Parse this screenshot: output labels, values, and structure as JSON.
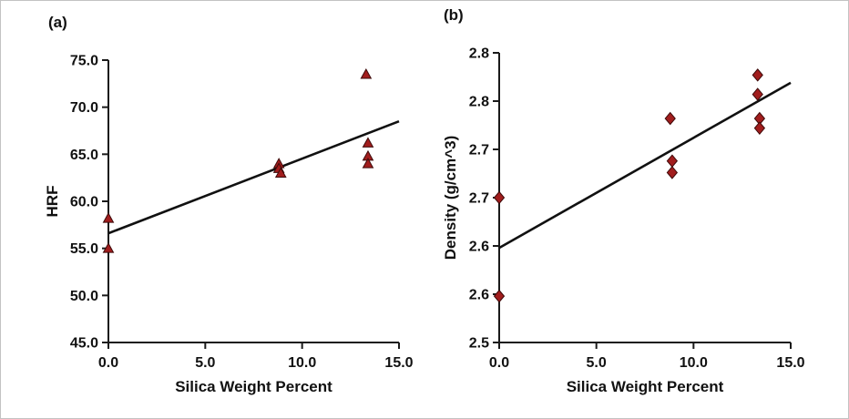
{
  "figure": {
    "background": "#ffffff",
    "text_color": "#111111",
    "axis_color": "#1a1a1a"
  },
  "chart_data": [
    {
      "type": "scatter",
      "panel_label": "(a)",
      "marker": "triangle",
      "marker_color": "#A11D1D",
      "marker_stroke": "#3d0a0a",
      "trendline_color": "#111111",
      "title": "",
      "xlabel": "Silica Weight Percent",
      "ylabel": "HRF",
      "xlim": [
        0,
        15
      ],
      "ylim": [
        45,
        75
      ],
      "xticks": [
        0,
        5,
        10,
        15
      ],
      "xtick_labels": [
        "0.0",
        "5.0",
        "10.0",
        "15.0"
      ],
      "yticks": [
        45,
        50,
        55,
        60,
        65,
        70,
        75
      ],
      "ytick_labels": [
        "45.0",
        "50.0",
        "55.0",
        "60.0",
        "65.0",
        "70.0",
        "75.0"
      ],
      "points": [
        [
          0,
          58.2
        ],
        [
          0,
          55.0
        ],
        [
          8.8,
          64.0
        ],
        [
          8.8,
          63.5
        ],
        [
          8.9,
          63.0
        ],
        [
          13.3,
          73.5
        ],
        [
          13.4,
          66.2
        ],
        [
          13.4,
          64.8
        ],
        [
          13.4,
          64.0
        ]
      ],
      "trendline": {
        "x1": 0,
        "y1": 56.6,
        "x2": 15,
        "y2": 68.5
      },
      "legend": "none",
      "grid": false
    },
    {
      "type": "scatter",
      "panel_label": "(b)",
      "marker": "diamond",
      "marker_color": "#A11D1D",
      "marker_stroke": "#3d0a0a",
      "trendline_color": "#111111",
      "title": "",
      "xlabel": "Silica Weight Percent",
      "ylabel": "Density (g/cm^3)",
      "xlim": [
        0,
        15
      ],
      "ylim": [
        2.5,
        2.8
      ],
      "xticks": [
        0,
        5,
        10,
        15
      ],
      "xtick_labels": [
        "0.0",
        "5.0",
        "10.0",
        "15.0"
      ],
      "yticks": [
        2.5,
        2.55,
        2.6,
        2.65,
        2.7,
        2.75,
        2.8
      ],
      "ytick_labels": [
        "2.5",
        "2.6",
        "2.6",
        "2.7",
        "2.7",
        "2.8",
        "2.8"
      ],
      "points": [
        [
          0,
          2.65
        ],
        [
          0,
          2.548
        ],
        [
          8.8,
          2.732
        ],
        [
          8.9,
          2.688
        ],
        [
          8.9,
          2.676
        ],
        [
          13.3,
          2.777
        ],
        [
          13.3,
          2.757
        ],
        [
          13.4,
          2.732
        ],
        [
          13.4,
          2.722
        ]
      ],
      "trendline": {
        "x1": 0,
        "y1": 2.598,
        "x2": 15,
        "y2": 2.769
      },
      "legend": "none",
      "grid": false
    }
  ]
}
